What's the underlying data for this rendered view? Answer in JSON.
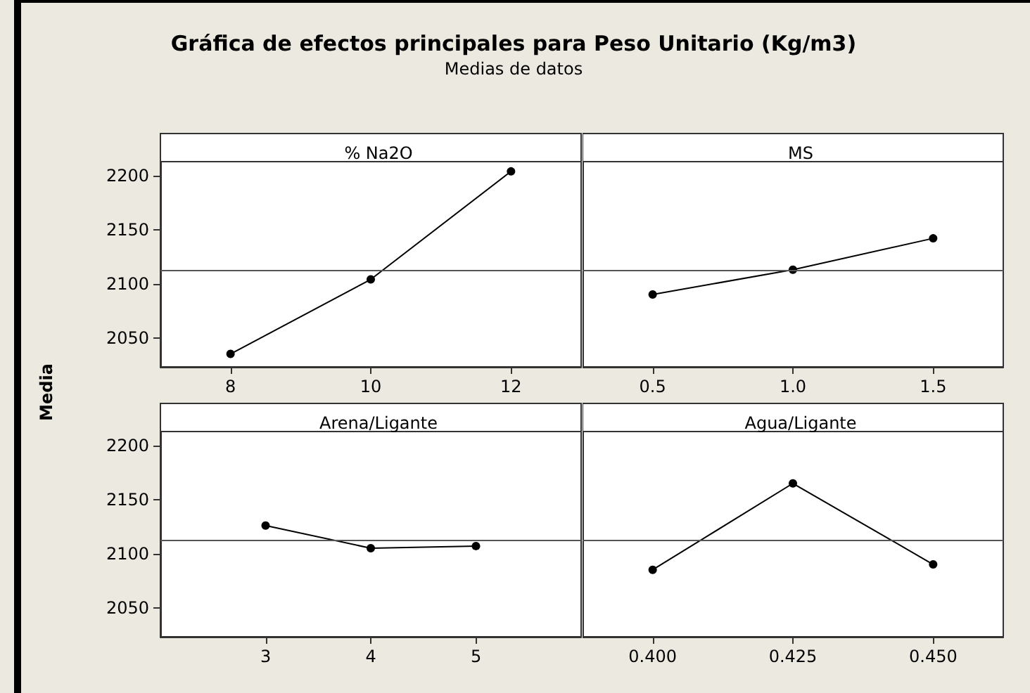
{
  "chart_data": [
    {
      "type": "line",
      "title": "% Na2O",
      "annotations": [
        "Gráfica de efectos principales para Peso Unitario (Kg/m3)",
        "Medias de datos"
      ],
      "ylabel": "Media",
      "x": [
        8,
        10,
        12
      ],
      "series": [
        {
          "color": "#000000",
          "values": [
            2035,
            2104,
            2204
          ]
        }
      ],
      "xlim": [
        7,
        13
      ],
      "xticks": [
        8,
        10,
        12
      ],
      "ylim": [
        2023,
        2213
      ],
      "yticks": [
        2050,
        2100,
        2150,
        2200
      ],
      "ref_lines": [
        {
          "axis": "y",
          "value": 2113,
          "color": "#555555"
        }
      ],
      "marker": "circle",
      "line_style": "solid",
      "grid": false
    },
    {
      "type": "line",
      "title": "MS",
      "x": [
        0.5,
        1,
        1.5
      ],
      "series": [
        {
          "color": "#000000",
          "values": [
            2090,
            2113,
            2142
          ]
        }
      ],
      "xlim": [
        0.25,
        1.75
      ],
      "xticks": [
        {
          "value": 0.5,
          "label": "0.5"
        },
        {
          "value": 1,
          "label": "1.0"
        },
        {
          "value": 1.5,
          "label": "1.5"
        }
      ],
      "ylim": [
        2023,
        2213
      ],
      "yticks": [
        2050,
        2100,
        2150,
        2200
      ],
      "ref_lines": [
        {
          "axis": "y",
          "value": 2113,
          "color": "#555555"
        }
      ],
      "marker": "circle",
      "line_style": "solid",
      "grid": false,
      "tick_labels": "x"
    },
    {
      "type": "line",
      "title": "Arena/Ligante",
      "x": [
        3,
        4,
        5
      ],
      "series": [
        {
          "color": "#000000",
          "values": [
            2126,
            2105,
            2107
          ]
        }
      ],
      "xlim": [
        2,
        6
      ],
      "xticks": [
        3,
        4,
        5
      ],
      "ylim": [
        2023,
        2213
      ],
      "yticks": [
        2050,
        2100,
        2150,
        2200
      ],
      "ref_lines": [
        {
          "axis": "y",
          "value": 2113,
          "color": "#555555"
        }
      ],
      "marker": "circle",
      "line_style": "solid",
      "grid": false
    },
    {
      "type": "line",
      "title": "Agua/Ligante",
      "x": [
        0.4,
        0.425,
        0.45
      ],
      "series": [
        {
          "color": "#000000",
          "values": [
            2085,
            2165,
            2090
          ]
        }
      ],
      "xlim": [
        0.3875,
        0.4625
      ],
      "xticks": [
        {
          "value": 0.4,
          "label": "0.400"
        },
        {
          "value": 0.425,
          "label": "0.425"
        },
        {
          "value": 0.45,
          "label": "0.450"
        }
      ],
      "ylim": [
        2023,
        2213
      ],
      "yticks": [
        2050,
        2100,
        2150,
        2200
      ],
      "ref_lines": [
        {
          "axis": "y",
          "value": 2113,
          "color": "#555555"
        }
      ],
      "marker": "circle",
      "line_style": "solid",
      "grid": false,
      "tick_labels": "x"
    }
  ]
}
